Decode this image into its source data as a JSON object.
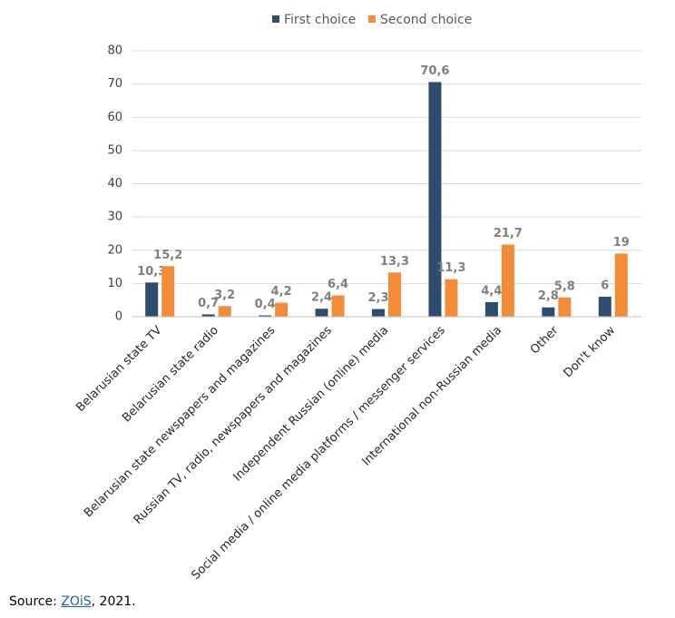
{
  "chart_data": {
    "type": "bar",
    "categories": [
      "Belarusian state TV",
      "Belarusian state radio",
      "Belarusian state newspapers and magazines",
      "Russian TV, radio, newspapers and magazines",
      "Independent Russian (online) media",
      "Social media / online media platforms / messenger services",
      "International non-Russian media",
      "Other",
      "Don't know"
    ],
    "series": [
      {
        "name": "First choice",
        "color": "#2f4b6e",
        "values": [
          10.3,
          0.7,
          0.4,
          2.4,
          2.3,
          70.6,
          4.4,
          2.8,
          6
        ],
        "value_labels": [
          "10,3",
          "0,7",
          "0,4",
          "2,4",
          "2,3",
          "70,6",
          "4,4",
          "2,8",
          "6"
        ]
      },
      {
        "name": "Second choice",
        "color": "#f28c38",
        "values": [
          15.2,
          3.2,
          4.2,
          6.4,
          13.3,
          11.3,
          21.7,
          5.8,
          19
        ],
        "value_labels": [
          "15,2",
          "3,2",
          "4,2",
          "6,4",
          "13,3",
          "11,3",
          "21,7",
          "5,8",
          "19"
        ]
      }
    ],
    "ylim": [
      0,
      80
    ],
    "yticks": [
      0,
      10,
      20,
      30,
      40,
      50,
      60,
      70,
      80
    ],
    "grid": true,
    "legend": "top"
  },
  "source": {
    "prefix": "Source: ",
    "link": "ZOiS",
    "suffix": ", 2021."
  }
}
